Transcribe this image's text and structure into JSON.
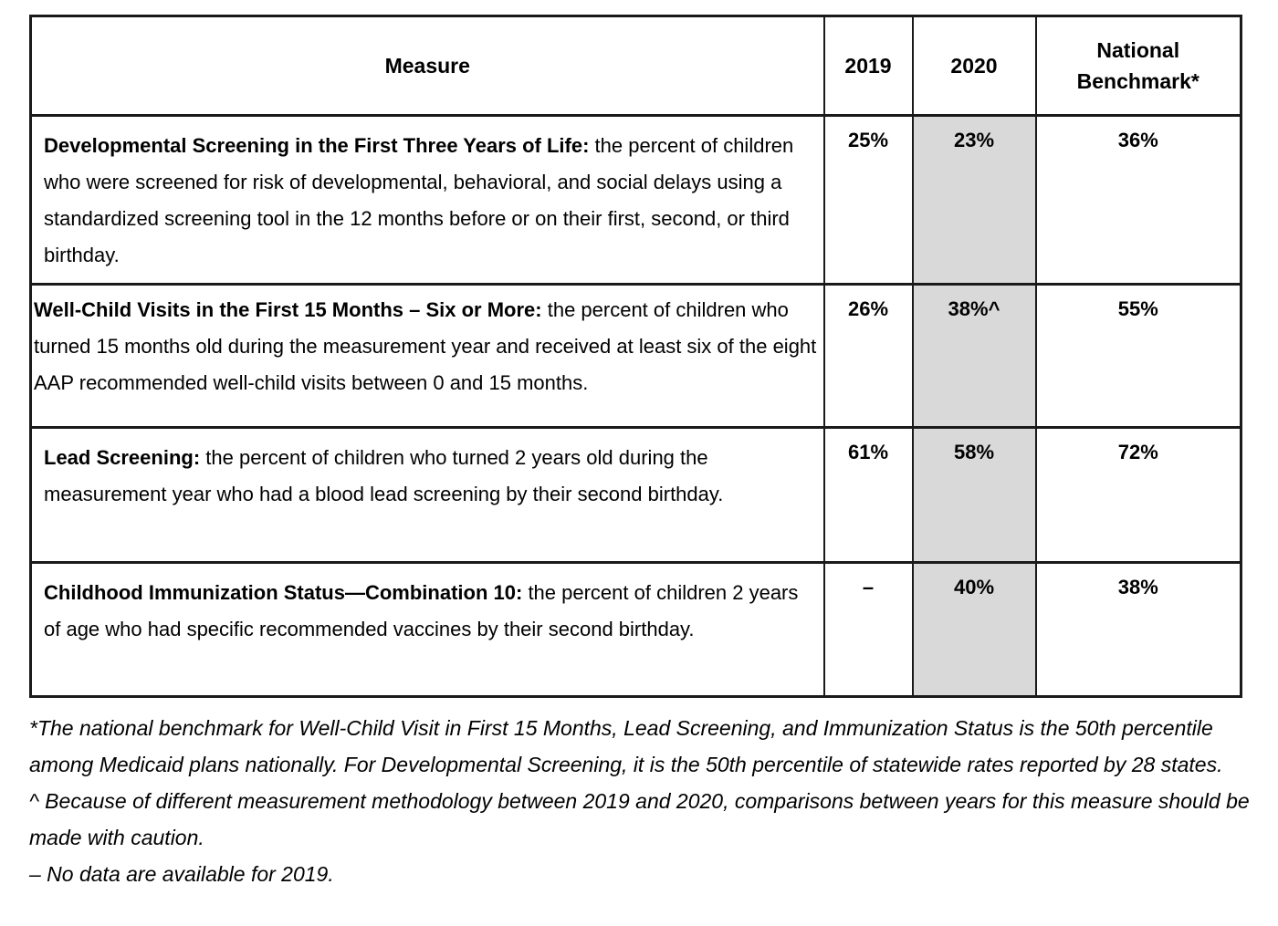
{
  "colors": {
    "shaded_column": "#d9d9d9",
    "border": "#1a1a1a",
    "text": "#000000",
    "background": "#ffffff"
  },
  "table": {
    "headers": {
      "measure": "Measure",
      "y2019": "2019",
      "y2020": "2020",
      "benchmark": "National Benchmark*"
    },
    "rows": [
      {
        "title": "Developmental Screening in the First Three Years of Life:",
        "description": " the percent of children who were screened for risk of developmental, behavioral, and social delays using a standardized screening tool in the 12 months before or on their first, second, or third birthday.",
        "y2019": "25%",
        "y2020": "23%",
        "benchmark": "36%"
      },
      {
        "title": "Well-Child Visits in the First 15 Months – Six or More:",
        "description": " the percent of children who turned 15 months old during the measurement year and received at least six of the eight AAP recommended well-child visits between 0 and 15 months.",
        "y2019": "26%",
        "y2020": "38%^",
        "benchmark": "55%"
      },
      {
        "title": "Lead Screening:",
        "description": " the percent of children who turned 2 years old during the measurement year who had a blood lead screening by their second birthday.",
        "y2019": "61%",
        "y2020": "58%",
        "benchmark": "72%"
      },
      {
        "title": "Childhood Immunization Status—Combination 10:",
        "description": " the percent of children 2 years of age who had specific recommended vaccines by their second birthday.",
        "y2019": "–",
        "y2020": "40%",
        "benchmark": "38%"
      }
    ]
  },
  "footnotes": [
    "*The national benchmark for Well-Child Visit in First 15 Months, Lead Screening, and Immunization Status is the 50th percentile among Medicaid plans nationally. For Developmental Screening, it is the 50th percentile of statewide rates reported by 28 states.",
    "^ Because of different measurement methodology between 2019 and 2020, comparisons between years for this measure should be made with caution.",
    "– No data are available for 2019."
  ]
}
